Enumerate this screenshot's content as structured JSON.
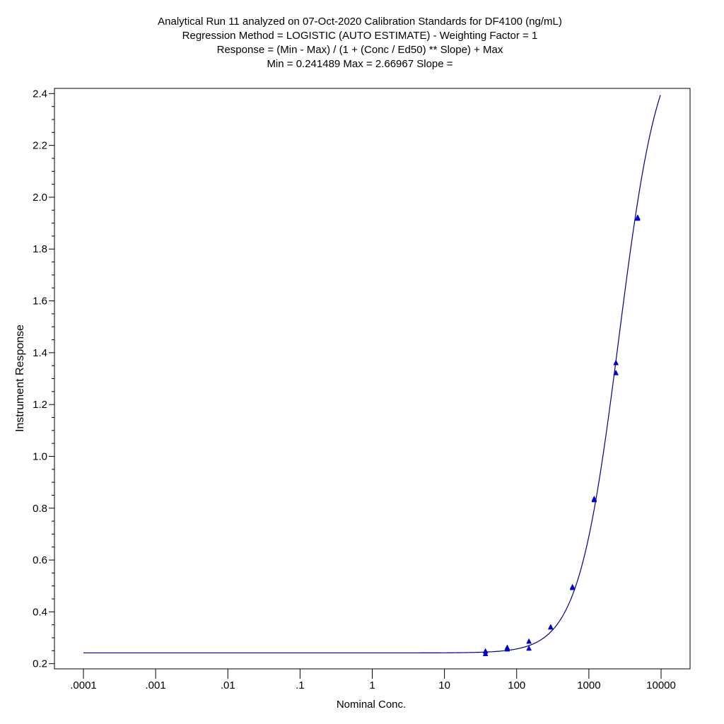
{
  "chart_data": {
    "type": "scatter",
    "title_lines": [
      "Analytical Run 11 analyzed on 07-Oct-2020 Calibration Standards for DF4100 (ng/mL)",
      "Regression Method = LOGISTIC (AUTO ESTIMATE) - Weighting Factor = 1",
      "Response = (Min - Max) / (1 + (Conc / Ed50) ** Slope) + Max",
      "Min = 0.241489 Max = 2.66967 Slope ="
    ],
    "xlabel": "Nominal Conc.",
    "ylabel": "Instrument Response",
    "x_scale": "log",
    "xlim": [
      0.0001,
      10000
    ],
    "ylim": [
      0.18,
      2.42
    ],
    "x_ticks": [
      {
        "value": 0.0001,
        "label": ".0001"
      },
      {
        "value": 0.001,
        "label": ".001"
      },
      {
        "value": 0.01,
        "label": ".01"
      },
      {
        "value": 0.1,
        "label": ".1"
      },
      {
        "value": 1,
        "label": "1"
      },
      {
        "value": 10,
        "label": "10"
      },
      {
        "value": 100,
        "label": "100"
      },
      {
        "value": 1000,
        "label": "1000"
      },
      {
        "value": 10000,
        "label": "10000"
      }
    ],
    "y_ticks": [
      {
        "value": 0.2,
        "label": "0.2"
      },
      {
        "value": 0.4,
        "label": "0.4"
      },
      {
        "value": 0.6,
        "label": "0.6"
      },
      {
        "value": 0.8,
        "label": "0.8"
      },
      {
        "value": 1.0,
        "label": "1.0"
      },
      {
        "value": 1.2,
        "label": "1.2"
      },
      {
        "value": 1.4,
        "label": "1.4"
      },
      {
        "value": 1.6,
        "label": "1.6"
      },
      {
        "value": 1.8,
        "label": "1.8"
      },
      {
        "value": 2.0,
        "label": "2.0"
      },
      {
        "value": 2.2,
        "label": "2.2"
      },
      {
        "value": 2.4,
        "label": "2.4"
      }
    ],
    "y_minor_step": 0.05,
    "grid": false,
    "fit_curve": {
      "model": "4PL logistic",
      "min": 0.241489,
      "max": 2.66967,
      "ed50": 2600,
      "slope": 1.55,
      "x_range": [
        0.0001,
        9800
      ]
    },
    "points": [
      {
        "x": 37,
        "y": 0.248
      },
      {
        "x": 37,
        "y": 0.238
      },
      {
        "x": 74,
        "y": 0.262
      },
      {
        "x": 74,
        "y": 0.256
      },
      {
        "x": 148,
        "y": 0.286
      },
      {
        "x": 148,
        "y": 0.259
      },
      {
        "x": 296,
        "y": 0.341
      },
      {
        "x": 296,
        "y": 0.341
      },
      {
        "x": 593,
        "y": 0.493
      },
      {
        "x": 593,
        "y": 0.496
      },
      {
        "x": 1185,
        "y": 0.832
      },
      {
        "x": 1185,
        "y": 0.836
      },
      {
        "x": 2370,
        "y": 1.361
      },
      {
        "x": 2370,
        "y": 1.322
      },
      {
        "x": 4741,
        "y": 1.918
      },
      {
        "x": 4741,
        "y": 1.922
      }
    ],
    "colors": {
      "curve": "#00008b",
      "markers": "#0000cc",
      "axes": "#000000",
      "background": "#ffffff"
    }
  }
}
